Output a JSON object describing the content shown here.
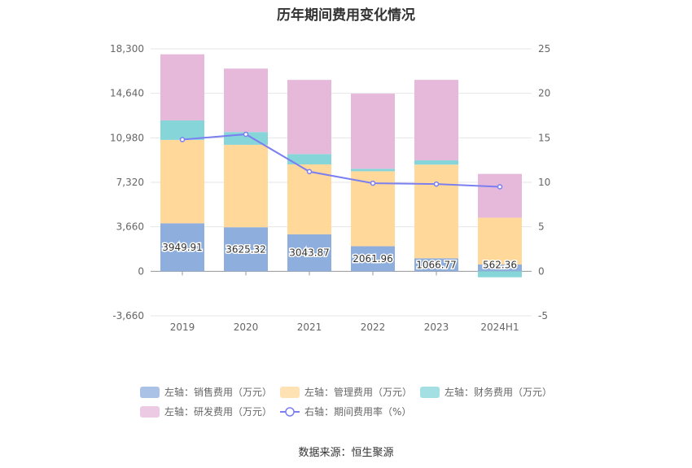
{
  "chart_data": {
    "type": "bar",
    "title": "历年期间费用变化情况",
    "categories": [
      "2019",
      "2020",
      "2021",
      "2022",
      "2023",
      "2024H1"
    ],
    "left_axis": {
      "ticks": [
        "18,300",
        "14,640",
        "10,980",
        "7,320",
        "3,660",
        "0",
        "-3,660"
      ],
      "ylim": [
        -3660,
        18300
      ]
    },
    "right_axis": {
      "ticks": [
        "25",
        "20",
        "15",
        "10",
        "5",
        "0",
        "-5"
      ],
      "ylim": [
        -5,
        25
      ]
    },
    "grid": true,
    "legend_position": "bottom",
    "series": [
      {
        "name": "左轴：销售费用（万元）",
        "axis": "left",
        "kind": "bar",
        "color": "#8eaedd",
        "values": [
          3949.91,
          3625.32,
          3043.87,
          2061.96,
          1066.77,
          562.36
        ],
        "labels": [
          "3949.91",
          "3625.32",
          "3043.87",
          "2061.96",
          "1066.77",
          "562.36"
        ]
      },
      {
        "name": "左轴：管理费用（万元）",
        "axis": "left",
        "kind": "bar",
        "color": "#ffd89a",
        "values": [
          6860,
          6780,
          5750,
          6170,
          7710,
          3850
        ]
      },
      {
        "name": "左轴：财务费用（万元）",
        "axis": "left",
        "kind": "bar",
        "color": "#86d6d9",
        "values": [
          1600,
          1050,
          850,
          200,
          350,
          -490
        ]
      },
      {
        "name": "左轴：研发费用（万元）",
        "axis": "left",
        "kind": "bar",
        "color": "#e6b8da",
        "values": [
          5440,
          5220,
          6100,
          6180,
          6620,
          3600
        ]
      },
      {
        "name": "右轴：期间费用率（%）",
        "axis": "right",
        "kind": "line",
        "color": "#7b7ff0",
        "values": [
          14.8,
          15.4,
          11.2,
          9.9,
          9.8,
          9.5
        ]
      }
    ],
    "source": "数据来源：恒生聚源"
  }
}
